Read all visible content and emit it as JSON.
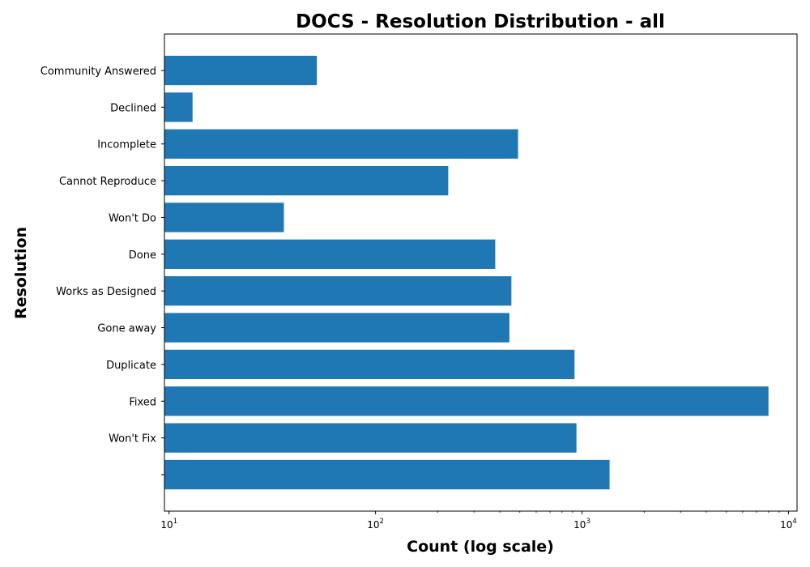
{
  "chart_data": {
    "type": "bar",
    "orientation": "horizontal",
    "title": "DOCS - Resolution Distribution - all",
    "xlabel": "Count (log scale)",
    "ylabel": "Resolution",
    "x_scale": "log",
    "xlim": [
      9.5,
      11000
    ],
    "x_ticks": [
      {
        "value": 10,
        "base": "10",
        "exp": "1"
      },
      {
        "value": 100,
        "base": "10",
        "exp": "2"
      },
      {
        "value": 1000,
        "base": "10",
        "exp": "3"
      },
      {
        "value": 10000,
        "base": "10",
        "exp": "4"
      }
    ],
    "bar_color": "#1f77b4",
    "grid": false,
    "categories": [
      "Community Answered",
      "Declined",
      "Incomplete",
      "Cannot Reproduce",
      "Won't Do",
      "Done",
      "Works as Designed",
      "Gone away",
      "Duplicate",
      "Fixed",
      "Won't Fix",
      ""
    ],
    "values": [
      52,
      13,
      490,
      225,
      36,
      380,
      455,
      445,
      920,
      8000,
      940,
      1360
    ]
  }
}
